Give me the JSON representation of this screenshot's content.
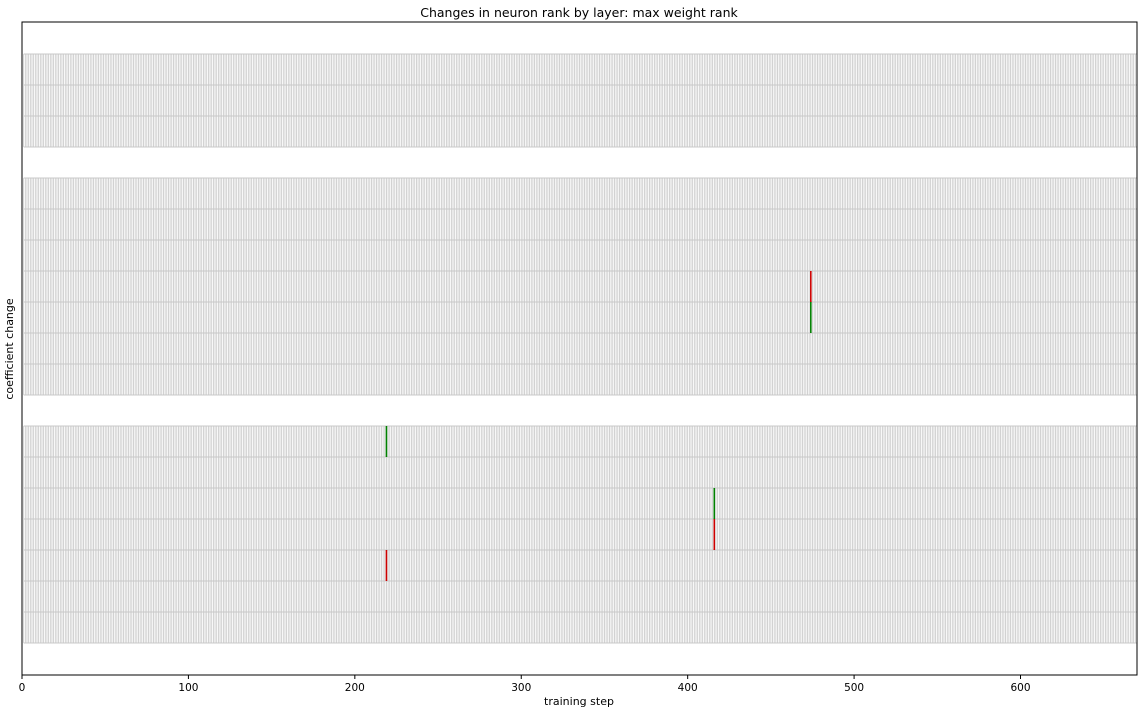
{
  "chart_data": {
    "type": "heatmap",
    "title": "Changes in neuron rank by layer: max weight rank",
    "xlabel": "training step",
    "ylabel": "coefficient change",
    "xlim": [
      0,
      670
    ],
    "x_ticks": [
      0,
      100,
      200,
      300,
      400,
      500,
      600
    ],
    "x_tick_labels": [
      "0",
      "100",
      "200",
      "300",
      "400",
      "500",
      "600"
    ],
    "steps": 670,
    "grid": true,
    "legend": "none",
    "colors": {
      "increase": "#008000",
      "decrease": "#cc0000",
      "grid": "#c8c8c8",
      "background": "#ffffff"
    },
    "layers": [
      {
        "neurons": 3
      },
      {
        "neurons": 7
      },
      {
        "neurons": 7
      }
    ],
    "changes": [
      {
        "layer": 1,
        "row": 3,
        "step": 474,
        "direction": "decrease"
      },
      {
        "layer": 1,
        "row": 4,
        "step": 474,
        "direction": "increase"
      },
      {
        "layer": 2,
        "row": 0,
        "step": 219,
        "direction": "increase"
      },
      {
        "layer": 2,
        "row": 4,
        "step": 219,
        "direction": "decrease"
      },
      {
        "layer": 2,
        "row": 2,
        "step": 416,
        "direction": "increase"
      },
      {
        "layer": 2,
        "row": 3,
        "step": 416,
        "direction": "decrease"
      }
    ]
  }
}
